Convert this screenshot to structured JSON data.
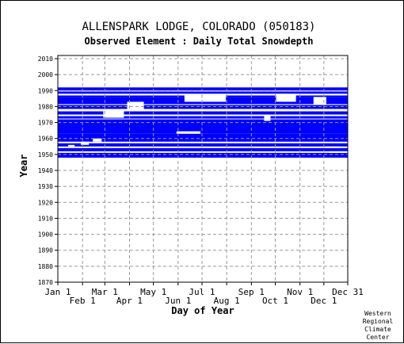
{
  "chart_data": {
    "type": "heatmap",
    "title": "ALLENSPARK LODGE, COLORADO   (050183)",
    "subtitle": "Observed Element : Daily Total Snowdepth",
    "xlabel": "Day of Year",
    "ylabel": "Year",
    "xlim_day": [
      1,
      365
    ],
    "ylim": [
      1870,
      2012
    ],
    "y_ticks": [
      1870,
      1880,
      1890,
      1900,
      1910,
      1920,
      1930,
      1940,
      1950,
      1960,
      1970,
      1980,
      1990,
      2000,
      2010
    ],
    "x_ticks_upper": [
      {
        "label": "Jan 1",
        "day": 1
      },
      {
        "label": "Mar 1",
        "day": 60
      },
      {
        "label": "May 1",
        "day": 121
      },
      {
        "label": "Jul 1",
        "day": 182
      },
      {
        "label": "Sep 1",
        "day": 244
      },
      {
        "label": "Nov 1",
        "day": 305
      },
      {
        "label": "Dec 31",
        "day": 365
      }
    ],
    "x_ticks_lower": [
      {
        "label": "Feb 1",
        "day": 32
      },
      {
        "label": "Apr 1",
        "day": 91
      },
      {
        "label": "Jun 1",
        "day": 152
      },
      {
        "label": "Aug 1",
        "day": 213
      },
      {
        "label": "Oct 1",
        "day": 274
      },
      {
        "label": "Dec 1",
        "day": 335
      }
    ],
    "grid": true,
    "data_color": "#0000ff",
    "year_coverage": [
      {
        "years": [
          1948,
          1951
        ],
        "days": [
          1,
          365
        ]
      },
      {
        "years": [
          1952,
          1954
        ],
        "days": [
          1,
          365
        ]
      },
      {
        "years": [
          1955,
          1957
        ],
        "days": [
          1,
          365
        ]
      },
      {
        "years": [
          1958,
          1963
        ],
        "days": [
          1,
          365
        ]
      },
      {
        "years": [
          1963,
          1972
        ],
        "days": [
          1,
          365
        ]
      },
      {
        "years": [
          1972.5,
          1974
        ],
        "days": [
          1,
          365
        ]
      },
      {
        "years": [
          1975,
          1977
        ],
        "days": [
          1,
          365
        ]
      },
      {
        "years": [
          1978.5,
          1981
        ],
        "days": [
          1,
          365
        ]
      },
      {
        "years": [
          1981.5,
          1986
        ],
        "days": [
          1,
          365
        ]
      },
      {
        "years": [
          1986,
          1987
        ],
        "days": [
          1,
          365
        ]
      },
      {
        "years": [
          1988,
          1989.5
        ],
        "days": [
          1,
          365
        ]
      },
      {
        "years": [
          1990,
          1992
        ],
        "days": [
          1,
          365
        ]
      }
    ],
    "data_gaps": [
      {
        "years": [
          1974,
          1975
        ],
        "days": [
          1,
          365
        ]
      },
      {
        "years": [
          1977,
          1978.5
        ],
        "days": [
          1,
          365
        ]
      },
      {
        "years": [
          1981,
          1981.5
        ],
        "days": [
          1,
          365
        ]
      },
      {
        "years": [
          1987,
          1988
        ],
        "days": [
          1,
          365
        ]
      },
      {
        "years": [
          1989.5,
          1990
        ],
        "days": [
          1,
          365
        ]
      },
      {
        "years": [
          1973,
          1978
        ],
        "days": [
          58,
          84
        ]
      },
      {
        "years": [
          1978,
          1983
        ],
        "days": [
          88,
          109
        ]
      },
      {
        "years": [
          1983,
          1987
        ],
        "days": [
          160,
          212
        ]
      },
      {
        "years": [
          1983,
          1988
        ],
        "days": [
          275,
          300
        ]
      },
      {
        "years": [
          1981,
          1986
        ],
        "days": [
          322,
          338
        ]
      },
      {
        "years": [
          1971,
          1974
        ],
        "days": [
          260,
          268
        ]
      },
      {
        "years": [
          1956,
          1958
        ],
        "days": [
          30,
          40
        ]
      },
      {
        "years": [
          1955,
          1956
        ],
        "days": [
          14,
          22
        ]
      },
      {
        "years": [
          1958,
          1960
        ],
        "days": [
          45,
          56
        ]
      },
      {
        "years": [
          1963,
          1964.5
        ],
        "days": [
          150,
          180
        ]
      },
      {
        "years": [
          1951,
          1952
        ],
        "days": [
          342,
          365
        ]
      },
      {
        "years": [
          1954,
          1955
        ],
        "days": [
          337,
          355
        ]
      }
    ]
  },
  "credit": [
    "Western",
    "Regional",
    "Climate",
    "Center"
  ]
}
